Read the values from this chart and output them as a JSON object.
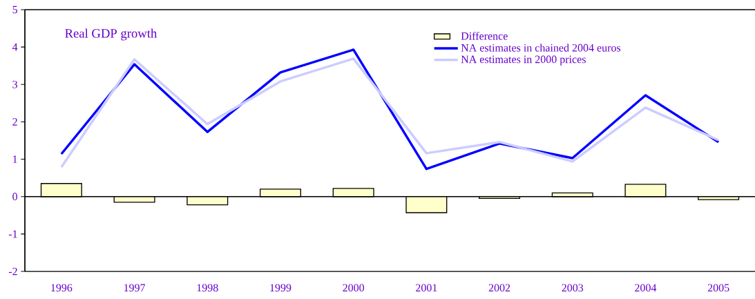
{
  "chart_data": {
    "type": "line",
    "title": "Real GDP growth",
    "categories": [
      "1996",
      "1997",
      "1998",
      "1999",
      "2000",
      "2001",
      "2002",
      "2003",
      "2004",
      "2005"
    ],
    "series": [
      {
        "name": "Difference",
        "type": "bar",
        "color": "#ffffcc",
        "values": [
          0.35,
          -0.15,
          -0.22,
          0.2,
          0.22,
          -0.43,
          -0.05,
          0.1,
          0.33,
          -0.08
        ]
      },
      {
        "name": "NA estimates in chained 2004 euros",
        "color": "#0000ff",
        "values": [
          1.14,
          3.54,
          1.73,
          3.32,
          3.93,
          0.74,
          1.42,
          1.03,
          2.71,
          1.46
        ]
      },
      {
        "name": "NA estimates in 2000 prices",
        "color": "#ccccff",
        "values": [
          0.79,
          3.67,
          1.94,
          3.08,
          3.69,
          1.16,
          1.46,
          0.94,
          2.38,
          1.51
        ]
      }
    ],
    "ylim": [
      -2,
      5
    ],
    "yticks": [
      -2,
      -1,
      0,
      1,
      2,
      3,
      4,
      5
    ],
    "legend": "top",
    "marker": "none",
    "line_style": "solid"
  }
}
